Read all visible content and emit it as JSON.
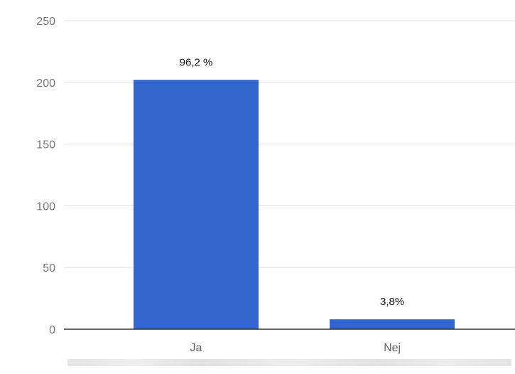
{
  "chart_data": {
    "type": "bar",
    "categories": [
      "Ja",
      "Nej"
    ],
    "values": [
      202,
      8
    ],
    "data_labels": [
      "96,2 %",
      "3,8%"
    ],
    "ylim": [
      0,
      250
    ],
    "yticks": [
      0,
      50,
      100,
      150,
      200,
      250
    ],
    "ytick_labels": [
      "0",
      "50",
      "100",
      "150",
      "200",
      "250"
    ],
    "grid": true,
    "legend": "none",
    "bar_color": "#3366cc"
  }
}
